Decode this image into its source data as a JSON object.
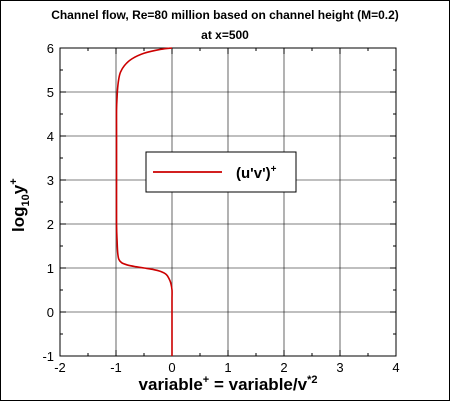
{
  "chart_data": {
    "type": "line",
    "title": "Channel flow, Re=80 million based on channel height (M=0.2)",
    "subtitle": "at x=500",
    "xlabel": {
      "base": "variable",
      "sup1": "+",
      "mid": " = variable/v",
      "sup2": "*2"
    },
    "ylabel": {
      "pre": "log",
      "sub": "10",
      "mid": "y",
      "sup": "+"
    },
    "xlim": [
      -2,
      4
    ],
    "ylim": [
      -1,
      6
    ],
    "xticks": [
      -2,
      -1,
      0,
      1,
      2,
      3,
      4
    ],
    "yticks": [
      -1,
      0,
      1,
      2,
      3,
      4,
      5,
      6
    ],
    "grid": true,
    "legend": {
      "placement": "center",
      "entry": {
        "base": "(u'v')",
        "sup": "+"
      }
    },
    "series": [
      {
        "color": "#cc0000",
        "x": [
          0.0,
          0.0,
          0.0,
          0.0,
          0.0,
          -0.02,
          -0.05,
          -0.1,
          -0.2,
          -0.35,
          -0.5,
          -0.65,
          -0.8,
          -0.9,
          -0.95,
          -0.97,
          -0.98,
          -0.99,
          -0.99,
          -0.99,
          -0.99,
          -0.98,
          -0.97,
          -0.95,
          -0.92,
          -0.85,
          -0.72,
          -0.5,
          -0.2,
          0.0
        ],
        "y": [
          -1.0,
          -0.5,
          0.0,
          0.3,
          0.5,
          0.65,
          0.75,
          0.85,
          0.92,
          0.97,
          1.0,
          1.03,
          1.07,
          1.12,
          1.2,
          1.35,
          1.6,
          2.0,
          3.0,
          4.0,
          4.6,
          4.9,
          5.1,
          5.3,
          5.45,
          5.6,
          5.75,
          5.88,
          5.97,
          6.0
        ]
      }
    ]
  }
}
